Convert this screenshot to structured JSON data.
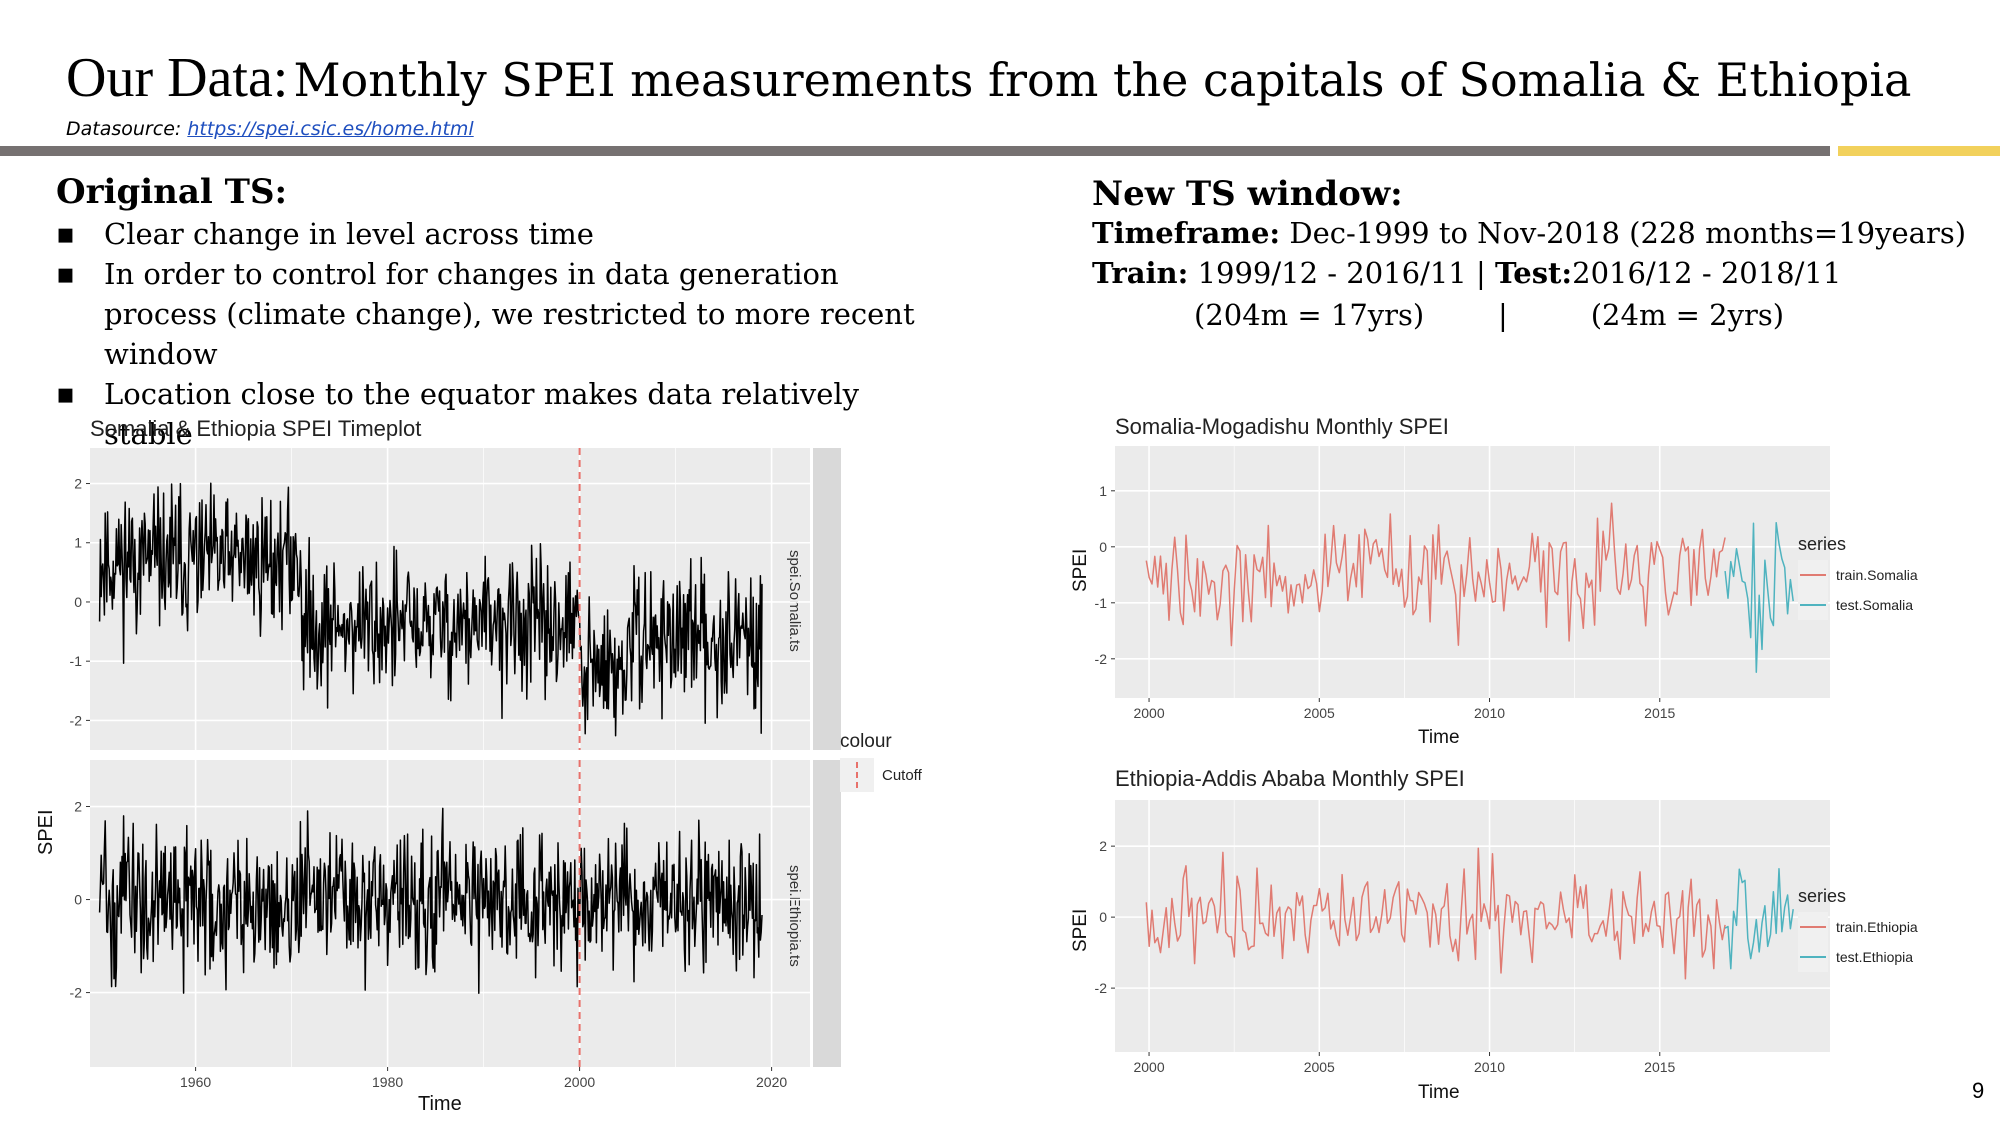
{
  "slide": {
    "title_main": "Our Data:",
    "title_rest": "Monthly SPEI measurements from the capitals of Somalia & Ethiopia",
    "datasource_label": "Datasource:",
    "datasource_url": "https://spei.csic.es/home.html",
    "page_number": "9",
    "colors": {
      "divider": "#767171",
      "accent": "#f2d15c",
      "train": "#e07b72",
      "test": "#4fb3bf",
      "panel": "#ebebeb",
      "strip": "#d9d9d9",
      "cutoff": "#e8716b"
    }
  },
  "left": {
    "heading": "Original TS:",
    "bullets": [
      "Clear change in level across time",
      "In order to control for changes in data generation process (climate change), we restricted to more recent window",
      "Location close to the equator makes data relatively stable"
    ]
  },
  "right": {
    "heading": "New TS window:",
    "timeframe_label": "Timeframe:",
    "timeframe_value": " Dec-1999 to Nov-2018 (228 months=19years)",
    "train_label": "Train:",
    "train_value": " 1999/12 - 2016/11 | ",
    "test_label": "Test:",
    "test_value": "2016/12 - 2018/11",
    "sizes_line": "(204m = 17yrs)        |         (24m = 2yrs)"
  },
  "chart_data": [
    {
      "type": "line",
      "title": "Somalia & Ethiopia SPEI Timeplot",
      "xlabel": "Time",
      "ylabel": "SPEI",
      "x_ticks": [
        1960,
        1980,
        2000,
        2020
      ],
      "xlim": [
        1949,
        2024
      ],
      "cutoff_x": 2000,
      "legend_title": "colour",
      "legend_entries": [
        "Cutoff"
      ],
      "facets": [
        {
          "strip": "spei.Somalia.ts",
          "ylim": [
            -2.5,
            2.6
          ],
          "y_ticks": [
            2,
            1,
            0,
            -1,
            -2
          ],
          "series": {
            "x_start": 1950,
            "x_end": 2019,
            "segments": [
              [
                1950,
                1971,
                0.7
              ],
              [
                1971,
                2000,
                -0.4
              ],
              [
                2000,
                2005,
                -1.2
              ],
              [
                2005,
                2019,
                -0.6
              ]
            ],
            "amplitude": 0.75
          }
        },
        {
          "strip": "spei.Ethiopia.ts",
          "ylim": [
            -3.6,
            3.0
          ],
          "y_ticks": [
            2,
            0,
            -2
          ],
          "series": {
            "x_start": 1950,
            "x_end": 2019,
            "segments": [
              [
                1950,
                2019,
                0.0
              ]
            ],
            "amplitude": 1.0
          }
        }
      ]
    },
    {
      "type": "line",
      "title": "Somalia-Mogadishu Monthly SPEI",
      "xlabel": "Time",
      "ylabel": "SPEI",
      "x_ticks": [
        2000,
        2005,
        2010,
        2015
      ],
      "xlim": [
        1999,
        2020
      ],
      "ylim": [
        -2.7,
        1.8
      ],
      "y_ticks": [
        1,
        0,
        -1,
        -2
      ],
      "legend_title": "series",
      "series": [
        {
          "name": "train.Somalia",
          "x_start": 1999.92,
          "x_end": 2016.92,
          "level": -0.5,
          "amplitude": 0.7
        },
        {
          "name": "test.Somalia",
          "x_start": 2016.92,
          "x_end": 2018.92,
          "level": -0.6,
          "amplitude": 0.8
        }
      ]
    },
    {
      "type": "line",
      "title": "Ethiopia-Addis Ababa Monthly SPEI",
      "xlabel": "Time",
      "ylabel": "SPEI",
      "x_ticks": [
        2000,
        2005,
        2010,
        2015
      ],
      "xlim": [
        1999,
        2020
      ],
      "ylim": [
        -3.8,
        3.3
      ],
      "y_ticks": [
        2,
        0,
        -2
      ],
      "legend_title": "series",
      "series": [
        {
          "name": "train.Ethiopia",
          "x_start": 1999.92,
          "x_end": 2016.92,
          "level": 0.0,
          "amplitude": 0.9
        },
        {
          "name": "test.Ethiopia",
          "x_start": 2016.92,
          "x_end": 2018.92,
          "level": 0.0,
          "amplitude": 0.9
        }
      ]
    }
  ]
}
